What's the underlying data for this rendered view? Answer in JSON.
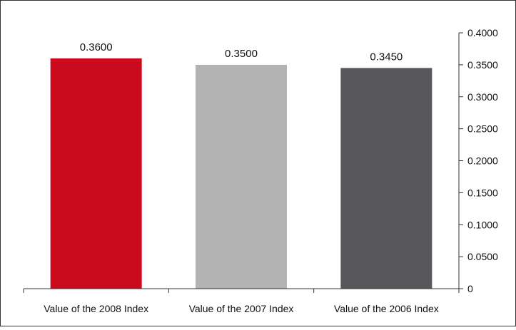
{
  "chart_data": {
    "type": "bar",
    "title": "",
    "xlabel": "",
    "ylabel": "",
    "categories": [
      "Value of the 2008 Index",
      "Value of the 2007 Index",
      "Value of the 2006 Index"
    ],
    "values": [
      0.36,
      0.35,
      0.345
    ],
    "data_labels": [
      "0.3600",
      "0.3500",
      "0.3450"
    ],
    "bar_colors": [
      "#cc0a1e",
      "#b3b3b3",
      "#58585a"
    ],
    "ylim": [
      0,
      0.4
    ],
    "y_ticks": [
      0,
      0.05,
      0.1,
      0.15,
      0.2,
      0.25,
      0.3,
      0.35,
      0.4
    ],
    "y_tick_labels": [
      "0",
      "0.0500",
      "0.1000",
      "0.1500",
      "0.2000",
      "0.2500",
      "0.3000",
      "0.3500",
      "0.4000"
    ],
    "y_axis_side": "right",
    "grid": false,
    "legend": "none",
    "frame_color": "#333333"
  }
}
